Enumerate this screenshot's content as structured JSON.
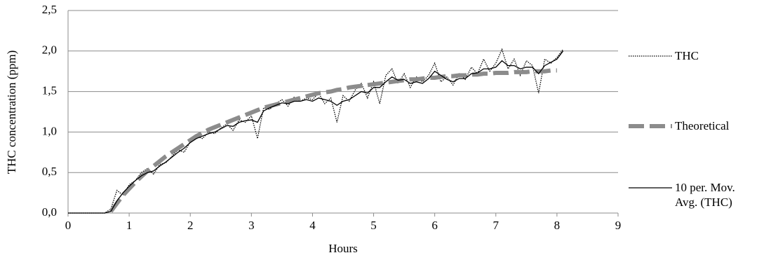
{
  "chart_data": {
    "type": "line",
    "y_label": "THC concentration (ppm)",
    "x_label": "Hours",
    "x": [
      0,
      0.1,
      0.2,
      0.3,
      0.4,
      0.5,
      0.6,
      0.7,
      0.8,
      0.9,
      1.0,
      1.1,
      1.2,
      1.3,
      1.4,
      1.5,
      1.6,
      1.7,
      1.8,
      1.9,
      2.0,
      2.1,
      2.2,
      2.3,
      2.4,
      2.5,
      2.6,
      2.7,
      2.8,
      2.9,
      3.0,
      3.1,
      3.2,
      3.3,
      3.4,
      3.5,
      3.6,
      3.7,
      3.8,
      3.9,
      4.0,
      4.1,
      4.2,
      4.3,
      4.4,
      4.5,
      4.6,
      4.7,
      4.8,
      4.9,
      5.0,
      5.1,
      5.2,
      5.3,
      5.4,
      5.5,
      5.6,
      5.7,
      5.8,
      5.9,
      6.0,
      6.1,
      6.2,
      6.3,
      6.4,
      6.5,
      6.6,
      6.7,
      6.8,
      6.9,
      7.0,
      7.1,
      7.2,
      7.3,
      7.4,
      7.5,
      7.6,
      7.7,
      7.8,
      7.9,
      8.0,
      8.1
    ],
    "series": [
      {
        "name": "THC",
        "color": "#000000",
        "dash": "dotted",
        "values": [
          0,
          0,
          0,
          0,
          0,
          0,
          0,
          0.05,
          0.28,
          0.22,
          0.35,
          0.4,
          0.5,
          0.55,
          0.48,
          0.6,
          0.62,
          0.7,
          0.78,
          0.75,
          0.88,
          0.95,
          0.92,
          1.0,
          0.98,
          1.05,
          1.1,
          1.02,
          1.15,
          1.12,
          1.2,
          0.92,
          1.3,
          1.28,
          1.35,
          1.4,
          1.32,
          1.43,
          1.38,
          1.42,
          1.4,
          1.48,
          1.35,
          1.42,
          1.12,
          1.45,
          1.38,
          1.52,
          1.6,
          1.42,
          1.62,
          1.35,
          1.7,
          1.78,
          1.6,
          1.72,
          1.55,
          1.68,
          1.62,
          1.7,
          1.85,
          1.62,
          1.68,
          1.58,
          1.72,
          1.65,
          1.8,
          1.72,
          1.9,
          1.75,
          1.85,
          2.02,
          1.78,
          1.9,
          1.7,
          1.88,
          1.82,
          1.48,
          1.9,
          1.85,
          1.92,
          2.02
        ]
      },
      {
        "name": "Theoretical",
        "color": "#8c8c8c",
        "dash": "dashed",
        "values": [
          null,
          null,
          null,
          null,
          null,
          null,
          null,
          0.02,
          0.12,
          0.22,
          0.3,
          0.38,
          0.45,
          0.52,
          0.58,
          0.64,
          0.7,
          0.75,
          0.8,
          0.85,
          0.9,
          0.95,
          0.99,
          1.03,
          1.06,
          1.09,
          1.12,
          1.15,
          1.18,
          1.21,
          1.24,
          1.27,
          1.3,
          1.32,
          1.34,
          1.36,
          1.38,
          1.4,
          1.42,
          1.44,
          1.46,
          1.48,
          1.49,
          1.5,
          1.52,
          1.53,
          1.55,
          1.56,
          1.57,
          1.58,
          1.59,
          1.6,
          1.61,
          1.62,
          1.63,
          1.64,
          1.65,
          1.65,
          1.66,
          1.67,
          1.67,
          1.68,
          1.69,
          1.69,
          1.7,
          1.7,
          1.71,
          1.71,
          1.72,
          1.72,
          1.73,
          1.73,
          1.73,
          1.74,
          1.74,
          1.74,
          1.75,
          1.75,
          1.75,
          1.76,
          1.76,
          null
        ]
      },
      {
        "name": "10 per. Mov. Avg. (THC)",
        "color": "#000000",
        "dash": "solid",
        "values": [
          0,
          0,
          0,
          0,
          0,
          0,
          0,
          0.02,
          0.15,
          0.25,
          0.33,
          0.4,
          0.46,
          0.5,
          0.52,
          0.58,
          0.63,
          0.69,
          0.75,
          0.8,
          0.87,
          0.92,
          0.95,
          0.98,
          1.0,
          1.04,
          1.08,
          1.07,
          1.12,
          1.14,
          1.15,
          1.12,
          1.26,
          1.3,
          1.33,
          1.36,
          1.35,
          1.38,
          1.38,
          1.4,
          1.38,
          1.42,
          1.4,
          1.38,
          1.33,
          1.38,
          1.4,
          1.45,
          1.5,
          1.48,
          1.55,
          1.55,
          1.62,
          1.68,
          1.64,
          1.65,
          1.6,
          1.62,
          1.6,
          1.66,
          1.75,
          1.7,
          1.65,
          1.62,
          1.66,
          1.66,
          1.72,
          1.73,
          1.78,
          1.78,
          1.8,
          1.88,
          1.82,
          1.82,
          1.78,
          1.8,
          1.8,
          1.72,
          1.82,
          1.86,
          1.9,
          2.0
        ]
      }
    ],
    "xlim": [
      0,
      9
    ],
    "xticks": [
      0,
      1,
      2,
      3,
      4,
      5,
      6,
      7,
      8,
      9
    ],
    "ylim": [
      0,
      2.5
    ],
    "yticks": [
      {
        "value": 0,
        "label": "0,0"
      },
      {
        "value": 0.5,
        "label": "0,5"
      },
      {
        "value": 1,
        "label": "1,0"
      },
      {
        "value": 1.5,
        "label": "1,5"
      },
      {
        "value": 2,
        "label": "2,0"
      },
      {
        "value": 2.5,
        "label": "2,5"
      }
    ],
    "grid": true,
    "legend": "right"
  }
}
